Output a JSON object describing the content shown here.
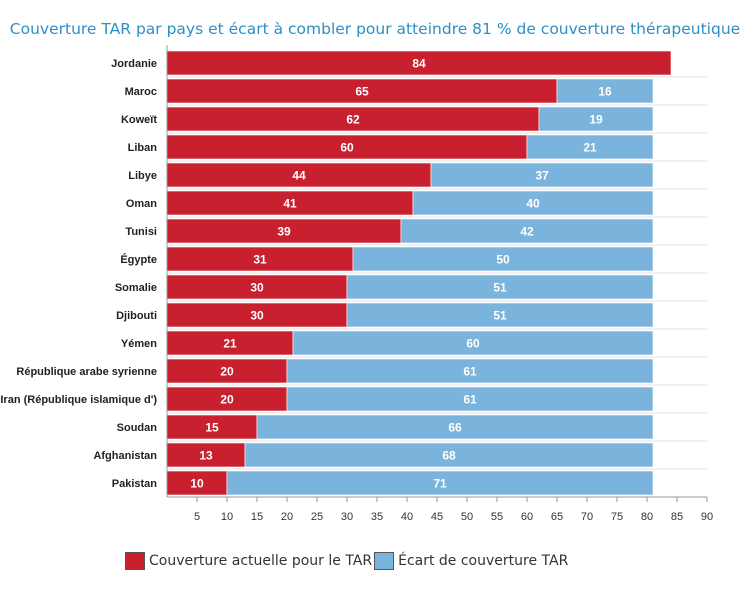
{
  "chart_data": {
    "type": "bar",
    "orientation": "horizontal",
    "stacked": true,
    "title": "Couverture TAR  par pays et écart à combler pour atteindre 81 % de couverture thérapeutique",
    "categories": [
      "Jordanie",
      "Maroc",
      "Koweït",
      "Liban",
      "Libye",
      "Oman",
      "Tunisi",
      "Égypte",
      "Somalie",
      "Djibouti",
      "Yémen",
      "République arabe syrienne",
      "Iran (République islamique d')",
      "Soudan",
      "Afghanistan",
      "Pakistan"
    ],
    "series": [
      {
        "name": "Couverture actuelle pour le TAR",
        "color": "#c8202f",
        "values": [
          84,
          65,
          62,
          60,
          44,
          41,
          39,
          31,
          30,
          30,
          21,
          20,
          20,
          15,
          13,
          10
        ]
      },
      {
        "name": "Écart de couverture TAR",
        "color": "#7ab4dc",
        "values": [
          null,
          16,
          19,
          21,
          37,
          40,
          42,
          50,
          51,
          51,
          60,
          61,
          61,
          66,
          68,
          71
        ]
      }
    ],
    "xlim": [
      0,
      90
    ],
    "xticks": [
      5,
      10,
      15,
      20,
      25,
      30,
      35,
      40,
      45,
      50,
      55,
      60,
      65,
      70,
      75,
      80,
      85,
      90
    ],
    "xlabel": "",
    "ylabel": "",
    "grid": "horizontal",
    "legend": "bottom"
  }
}
